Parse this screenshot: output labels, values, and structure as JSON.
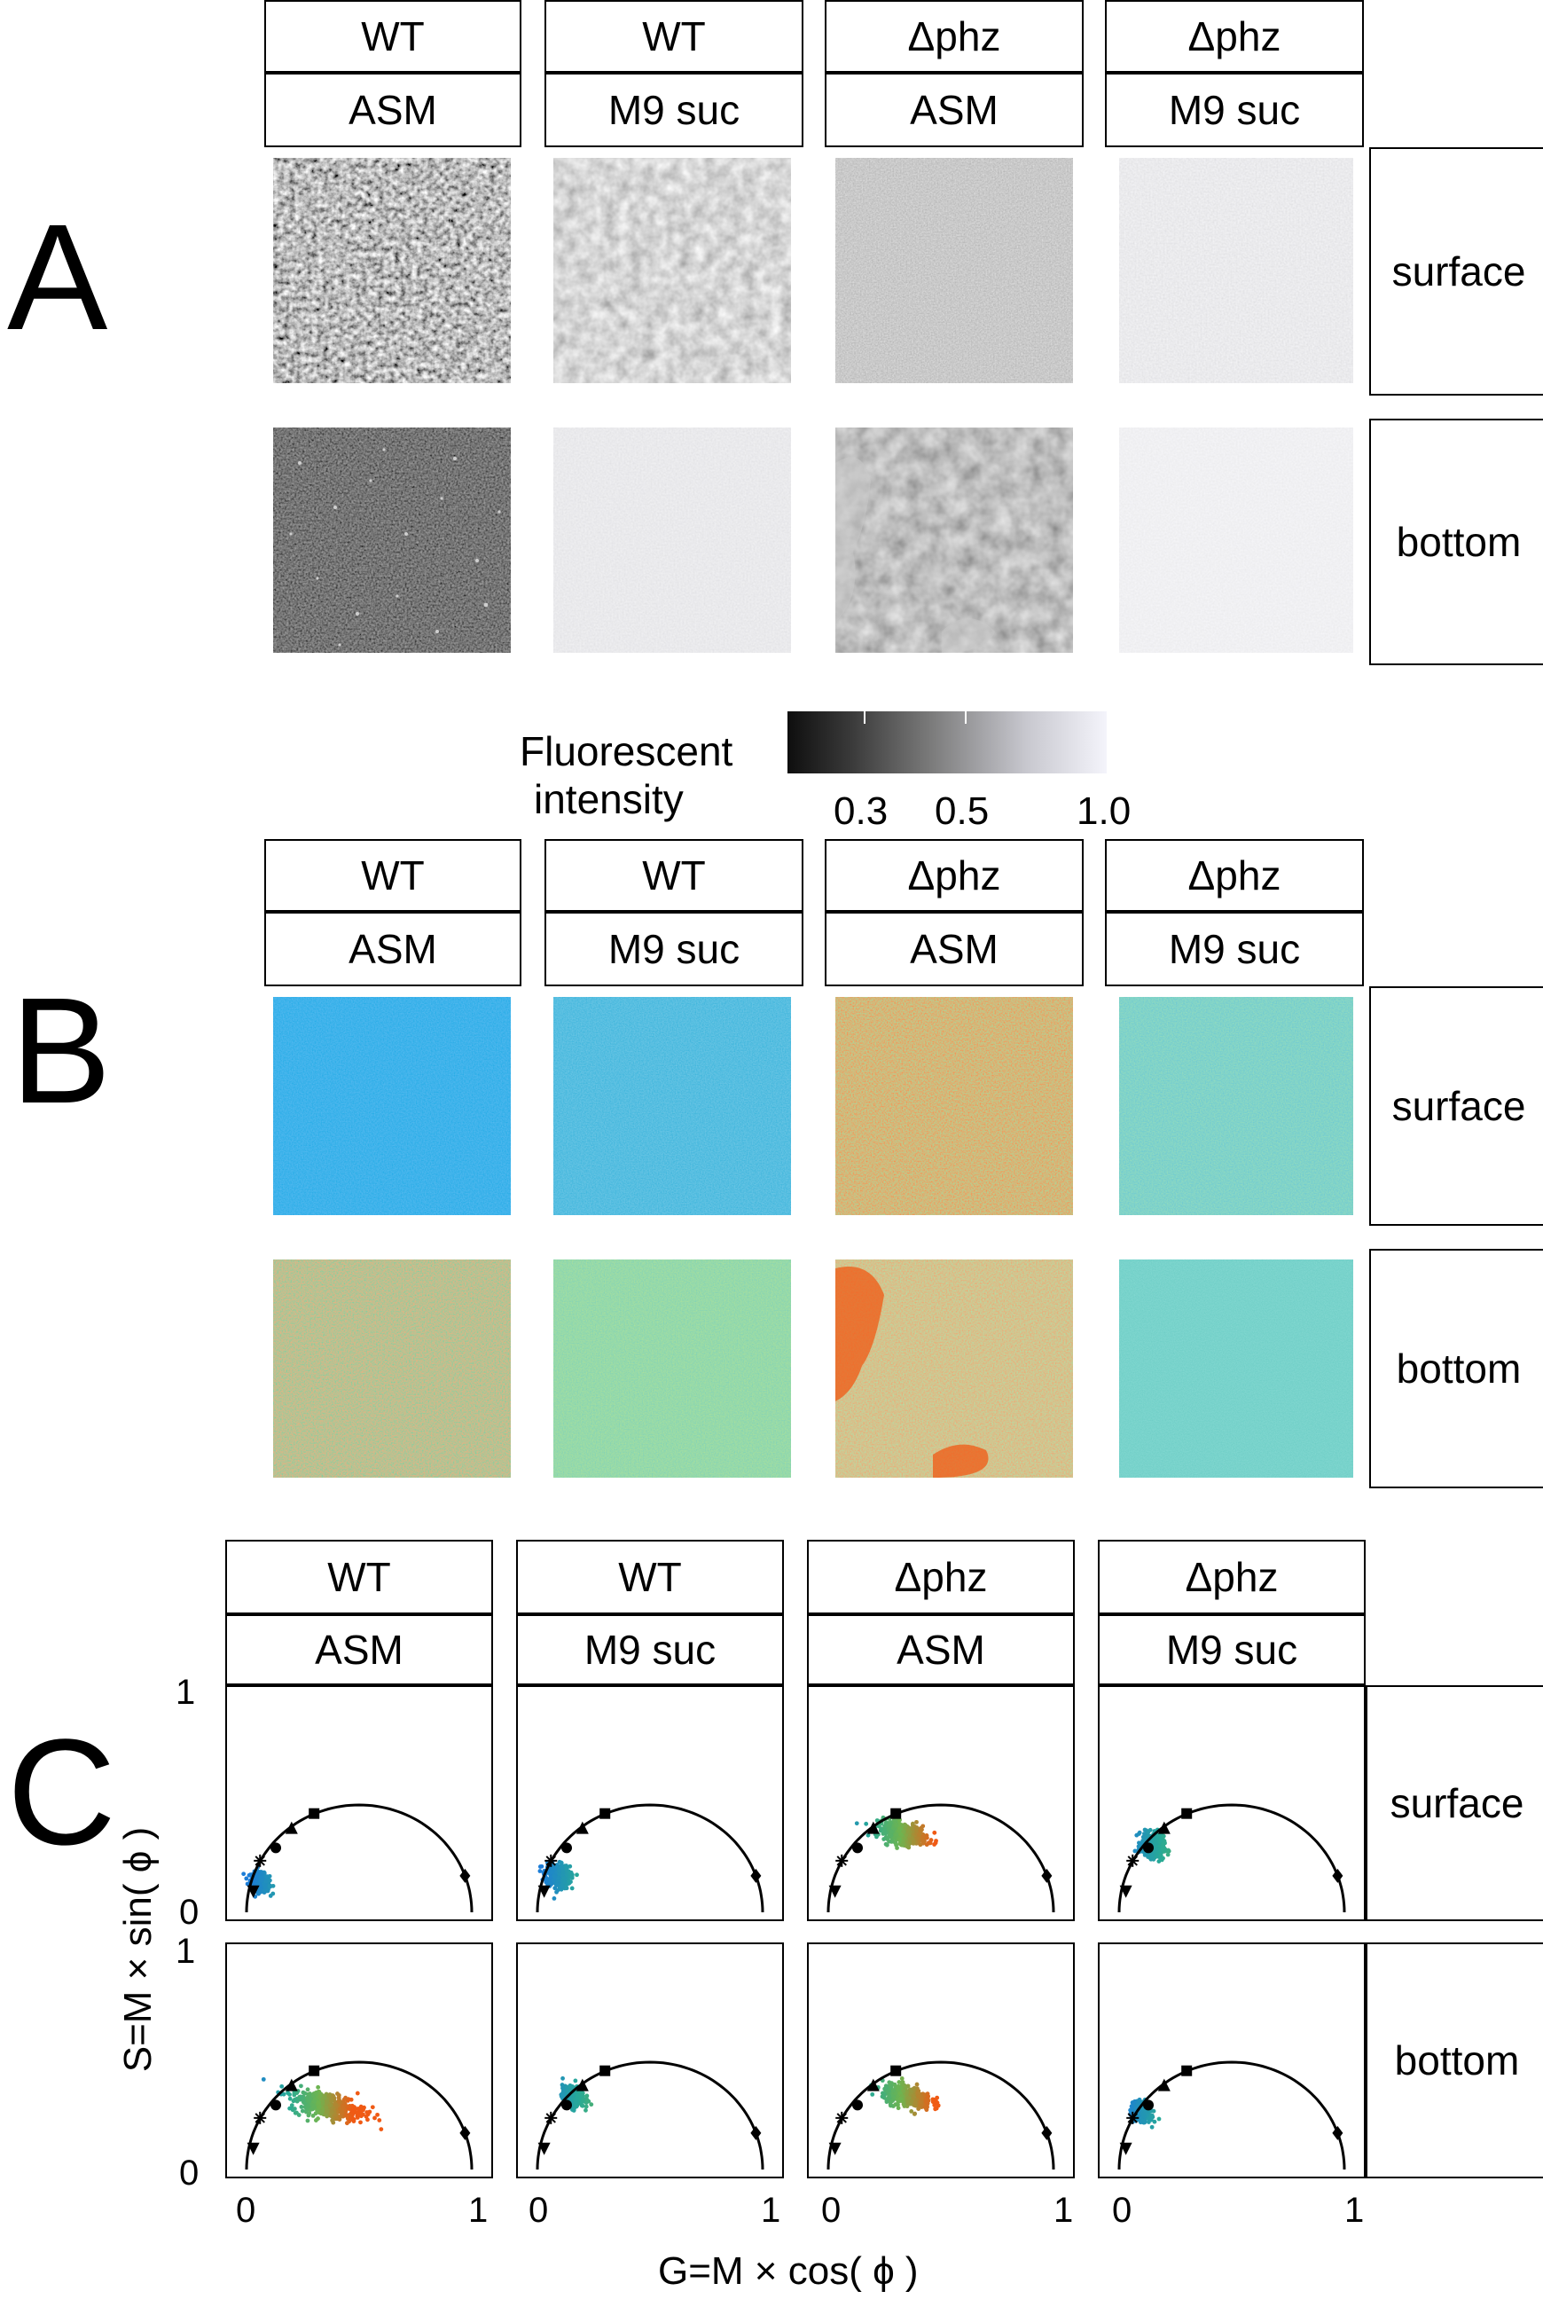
{
  "panels": {
    "A": {
      "letter": "A"
    },
    "B": {
      "letter": "B"
    },
    "C": {
      "letter": "C"
    }
  },
  "columns": [
    {
      "strain": "WT",
      "medium": "ASM"
    },
    {
      "strain": "WT",
      "medium": "M9 suc"
    },
    {
      "strain": "Δphz",
      "medium": "ASM"
    },
    {
      "strain": "Δphz",
      "medium": "M9 suc"
    }
  ],
  "rows": [
    "surface",
    "bottom"
  ],
  "colorbar": {
    "label_line1": "Fluorescent",
    "label_line2": "intensity",
    "ticks": [
      "0.3",
      "0.5",
      "1.0"
    ]
  },
  "phasor": {
    "xlabel": "G=M × cos( ϕ )",
    "ylabel": "S=M × sin( ϕ )",
    "x_ticks": [
      "0",
      "1"
    ],
    "y_ticks": [
      "0",
      "1"
    ]
  },
  "chart_data": {
    "type": "scatter",
    "title": "",
    "xlabel": "G=M × cos( ϕ )",
    "ylabel": "S=M × sin( ϕ )",
    "xlim": [
      0,
      1
    ],
    "ylim": [
      0,
      1
    ],
    "reference_curve": "universal semicircle centred at (0.5, 0) radius 0.5",
    "reference_markers": [
      {
        "marker": "triangle-down",
        "g": 0.03,
        "s": 0.1
      },
      {
        "marker": "asterisk",
        "g": 0.06,
        "s": 0.24
      },
      {
        "marker": "circle",
        "g": 0.13,
        "s": 0.3
      },
      {
        "marker": "triangle-up",
        "g": 0.2,
        "s": 0.39
      },
      {
        "marker": "square",
        "g": 0.3,
        "s": 0.46
      },
      {
        "marker": "diamond",
        "g": 0.97,
        "s": 0.17
      }
    ],
    "clusters": [
      {
        "column": "WT ASM",
        "row": "surface",
        "g": 0.06,
        "s": 0.14,
        "sg": 0.035,
        "ss": 0.035,
        "hue": "blue"
      },
      {
        "column": "WT M9 suc",
        "row": "surface",
        "g": 0.09,
        "s": 0.17,
        "sg": 0.045,
        "ss": 0.045,
        "hue": "blue-teal"
      },
      {
        "column": "Δphz ASM",
        "row": "surface",
        "g": 0.33,
        "s": 0.37,
        "sg": 0.09,
        "ss": 0.04,
        "hue": "teal-orange"
      },
      {
        "column": "Δphz M9 suc",
        "row": "surface",
        "g": 0.15,
        "s": 0.31,
        "sg": 0.04,
        "ss": 0.045,
        "hue": "teal-green"
      },
      {
        "column": "WT ASM",
        "row": "bottom",
        "g": 0.36,
        "s": 0.3,
        "sg": 0.14,
        "ss": 0.05,
        "hue": "teal-orange"
      },
      {
        "column": "WT M9 suc",
        "row": "bottom",
        "g": 0.16,
        "s": 0.34,
        "sg": 0.04,
        "ss": 0.035,
        "hue": "teal-green"
      },
      {
        "column": "Δphz ASM",
        "row": "bottom",
        "g": 0.35,
        "s": 0.34,
        "sg": 0.09,
        "ss": 0.04,
        "hue": "teal-orange"
      },
      {
        "column": "Δphz M9 suc",
        "row": "bottom",
        "g": 0.1,
        "s": 0.27,
        "sg": 0.03,
        "ss": 0.035,
        "hue": "teal-blue"
      }
    ]
  }
}
